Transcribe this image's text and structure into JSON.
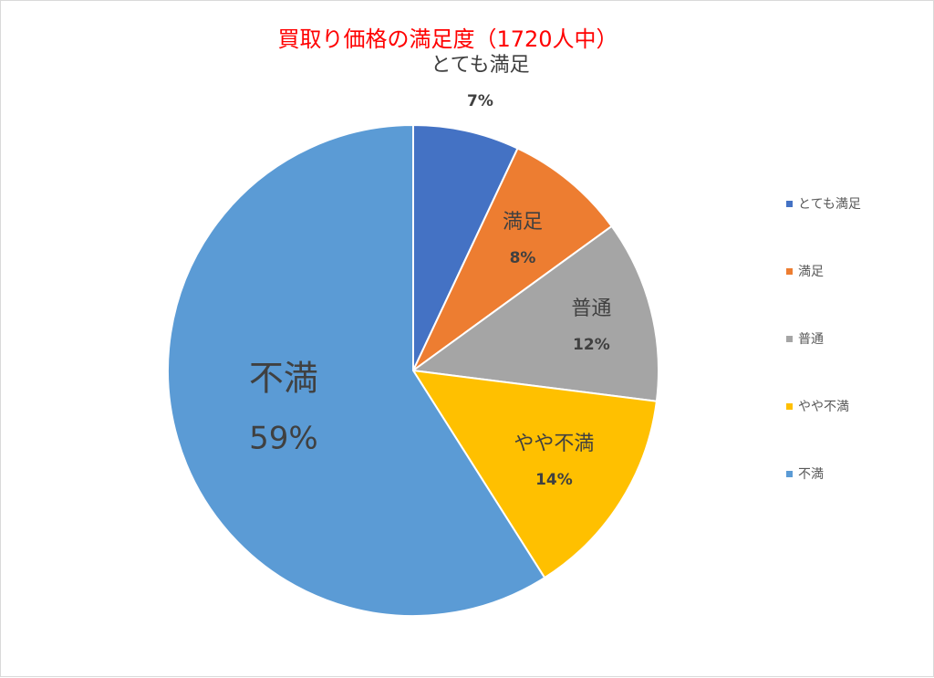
{
  "chart_data": {
    "type": "pie",
    "title": "買取り価格の満足度（1720人中）",
    "categories": [
      "とても満足",
      "満足",
      "普通",
      "やや不満",
      "不満"
    ],
    "values": [
      7,
      8,
      12,
      14,
      59
    ],
    "value_labels": [
      "7%",
      "8%",
      "12%",
      "14%",
      "59%"
    ],
    "colors": [
      "#4472c4",
      "#ed7d31",
      "#a5a5a5",
      "#ffc000",
      "#5b9bd5"
    ],
    "legend": "right",
    "start_angle": "12 o'clock, clockwise"
  }
}
